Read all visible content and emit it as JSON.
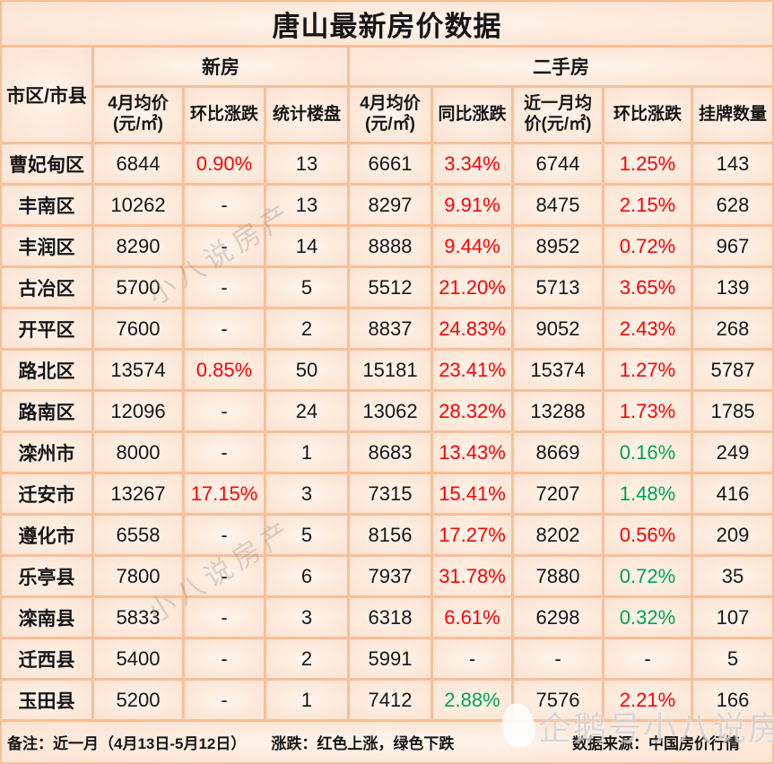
{
  "title": "唐山最新房价数据",
  "header": {
    "corner": "市区/市县",
    "group_new": "新房",
    "group_secondhand": "二手房",
    "sub_columns": [
      "4月均价\n(元/㎡)",
      "环比涨跌",
      "统计楼盘",
      "4月均价\n(元/㎡)",
      "同比涨跌",
      "近一月均\n价(元/㎡)",
      "环比涨跌",
      "挂牌数量"
    ]
  },
  "chart_data": {
    "type": "table",
    "title": "唐山最新房价数据",
    "column_groups": [
      {
        "label": "新房",
        "span": 3
      },
      {
        "label": "二手房",
        "span": 5
      }
    ],
    "columns": [
      "市区/市县",
      "新房4月均价(元/㎡)",
      "新房环比涨跌",
      "统计楼盘",
      "二手房4月均价(元/㎡)",
      "二手房同比涨跌",
      "二手房近一月均价(元/㎡)",
      "二手房环比涨跌",
      "挂牌数量"
    ],
    "color_codes": {
      "k": "black 黑色",
      "r": "red 红色上涨",
      "g": "green 绿色下跌"
    },
    "rows": [
      {
        "region": "曹妃甸区",
        "values": [
          {
            "v": "6844",
            "c": "k"
          },
          {
            "v": "0.90%",
            "c": "r"
          },
          {
            "v": "13",
            "c": "k"
          },
          {
            "v": "6661",
            "c": "k"
          },
          {
            "v": "3.34%",
            "c": "r"
          },
          {
            "v": "6744",
            "c": "k"
          },
          {
            "v": "1.25%",
            "c": "r"
          },
          {
            "v": "143",
            "c": "k"
          }
        ]
      },
      {
        "region": "丰南区",
        "values": [
          {
            "v": "10262",
            "c": "k"
          },
          {
            "v": "-",
            "c": "k"
          },
          {
            "v": "13",
            "c": "k"
          },
          {
            "v": "8297",
            "c": "k"
          },
          {
            "v": "9.91%",
            "c": "r"
          },
          {
            "v": "8475",
            "c": "k"
          },
          {
            "v": "2.15%",
            "c": "r"
          },
          {
            "v": "628",
            "c": "k"
          }
        ]
      },
      {
        "region": "丰润区",
        "values": [
          {
            "v": "8290",
            "c": "k"
          },
          {
            "v": "-",
            "c": "k"
          },
          {
            "v": "14",
            "c": "k"
          },
          {
            "v": "8888",
            "c": "k"
          },
          {
            "v": "9.44%",
            "c": "r"
          },
          {
            "v": "8952",
            "c": "k"
          },
          {
            "v": "0.72%",
            "c": "r"
          },
          {
            "v": "967",
            "c": "k"
          }
        ]
      },
      {
        "region": "古冶区",
        "values": [
          {
            "v": "5700",
            "c": "k"
          },
          {
            "v": "-",
            "c": "k"
          },
          {
            "v": "5",
            "c": "k"
          },
          {
            "v": "5512",
            "c": "k"
          },
          {
            "v": "21.20%",
            "c": "r"
          },
          {
            "v": "5713",
            "c": "k"
          },
          {
            "v": "3.65%",
            "c": "r"
          },
          {
            "v": "139",
            "c": "k"
          }
        ]
      },
      {
        "region": "开平区",
        "values": [
          {
            "v": "7600",
            "c": "k"
          },
          {
            "v": "-",
            "c": "k"
          },
          {
            "v": "2",
            "c": "k"
          },
          {
            "v": "8837",
            "c": "k"
          },
          {
            "v": "24.83%",
            "c": "r"
          },
          {
            "v": "9052",
            "c": "k"
          },
          {
            "v": "2.43%",
            "c": "r"
          },
          {
            "v": "268",
            "c": "k"
          }
        ]
      },
      {
        "region": "路北区",
        "values": [
          {
            "v": "13574",
            "c": "k"
          },
          {
            "v": "0.85%",
            "c": "r"
          },
          {
            "v": "50",
            "c": "k"
          },
          {
            "v": "15181",
            "c": "k"
          },
          {
            "v": "23.41%",
            "c": "r"
          },
          {
            "v": "15374",
            "c": "k"
          },
          {
            "v": "1.27%",
            "c": "r"
          },
          {
            "v": "5787",
            "c": "k"
          }
        ]
      },
      {
        "region": "路南区",
        "values": [
          {
            "v": "12096",
            "c": "k"
          },
          {
            "v": "-",
            "c": "k"
          },
          {
            "v": "24",
            "c": "k"
          },
          {
            "v": "13062",
            "c": "k"
          },
          {
            "v": "28.32%",
            "c": "r"
          },
          {
            "v": "13288",
            "c": "k"
          },
          {
            "v": "1.73%",
            "c": "r"
          },
          {
            "v": "1785",
            "c": "k"
          }
        ]
      },
      {
        "region": "滦州市",
        "values": [
          {
            "v": "8000",
            "c": "k"
          },
          {
            "v": "-",
            "c": "k"
          },
          {
            "v": "1",
            "c": "k"
          },
          {
            "v": "8683",
            "c": "k"
          },
          {
            "v": "13.43%",
            "c": "r"
          },
          {
            "v": "8669",
            "c": "k"
          },
          {
            "v": "0.16%",
            "c": "g"
          },
          {
            "v": "249",
            "c": "k"
          }
        ]
      },
      {
        "region": "迁安市",
        "values": [
          {
            "v": "13267",
            "c": "k"
          },
          {
            "v": "17.15%",
            "c": "r"
          },
          {
            "v": "3",
            "c": "k"
          },
          {
            "v": "7315",
            "c": "k"
          },
          {
            "v": "15.41%",
            "c": "r"
          },
          {
            "v": "7207",
            "c": "k"
          },
          {
            "v": "1.48%",
            "c": "g"
          },
          {
            "v": "416",
            "c": "k"
          }
        ]
      },
      {
        "region": "遵化市",
        "values": [
          {
            "v": "6558",
            "c": "k"
          },
          {
            "v": "-",
            "c": "k"
          },
          {
            "v": "5",
            "c": "k"
          },
          {
            "v": "8156",
            "c": "k"
          },
          {
            "v": "17.27%",
            "c": "r"
          },
          {
            "v": "8202",
            "c": "k"
          },
          {
            "v": "0.56%",
            "c": "r"
          },
          {
            "v": "209",
            "c": "k"
          }
        ]
      },
      {
        "region": "乐亭县",
        "values": [
          {
            "v": "7800",
            "c": "k"
          },
          {
            "v": "-",
            "c": "k"
          },
          {
            "v": "6",
            "c": "k"
          },
          {
            "v": "7937",
            "c": "k"
          },
          {
            "v": "31.78%",
            "c": "r"
          },
          {
            "v": "7880",
            "c": "k"
          },
          {
            "v": "0.72%",
            "c": "g"
          },
          {
            "v": "35",
            "c": "k"
          }
        ]
      },
      {
        "region": "滦南县",
        "values": [
          {
            "v": "5833",
            "c": "k"
          },
          {
            "v": "-",
            "c": "k"
          },
          {
            "v": "3",
            "c": "k"
          },
          {
            "v": "6318",
            "c": "k"
          },
          {
            "v": "6.61%",
            "c": "r"
          },
          {
            "v": "6298",
            "c": "k"
          },
          {
            "v": "0.32%",
            "c": "g"
          },
          {
            "v": "107",
            "c": "k"
          }
        ]
      },
      {
        "region": "迁西县",
        "values": [
          {
            "v": "5400",
            "c": "k"
          },
          {
            "v": "-",
            "c": "k"
          },
          {
            "v": "2",
            "c": "k"
          },
          {
            "v": "5991",
            "c": "k"
          },
          {
            "v": "-",
            "c": "k"
          },
          {
            "v": "-",
            "c": "k"
          },
          {
            "v": "-",
            "c": "k"
          },
          {
            "v": "5",
            "c": "k"
          }
        ]
      },
      {
        "region": "玉田县",
        "values": [
          {
            "v": "5200",
            "c": "k"
          },
          {
            "v": "-",
            "c": "k"
          },
          {
            "v": "1",
            "c": "k"
          },
          {
            "v": "7412",
            "c": "k"
          },
          {
            "v": "2.88%",
            "c": "g"
          },
          {
            "v": "7576",
            "c": "k"
          },
          {
            "v": "2.21%",
            "c": "r"
          },
          {
            "v": "166",
            "c": "k"
          }
        ]
      }
    ]
  },
  "footer": {
    "note": "备注：近一月（4月13日-5月12日）",
    "legend": "涨跌：红色上涨，绿色下跌",
    "source": "数据来源：中国房价行情"
  },
  "watermarks": {
    "diagonal": "小八说房产",
    "brand": "企鹅号小八说房产"
  },
  "colors": {
    "up_red": "#ff0000",
    "down_green": "#00a155",
    "grid_border": "#f5c09a",
    "cell_fill": "#fbe2d1",
    "cell_glow": "#fff5ee",
    "text": "#161616"
  }
}
